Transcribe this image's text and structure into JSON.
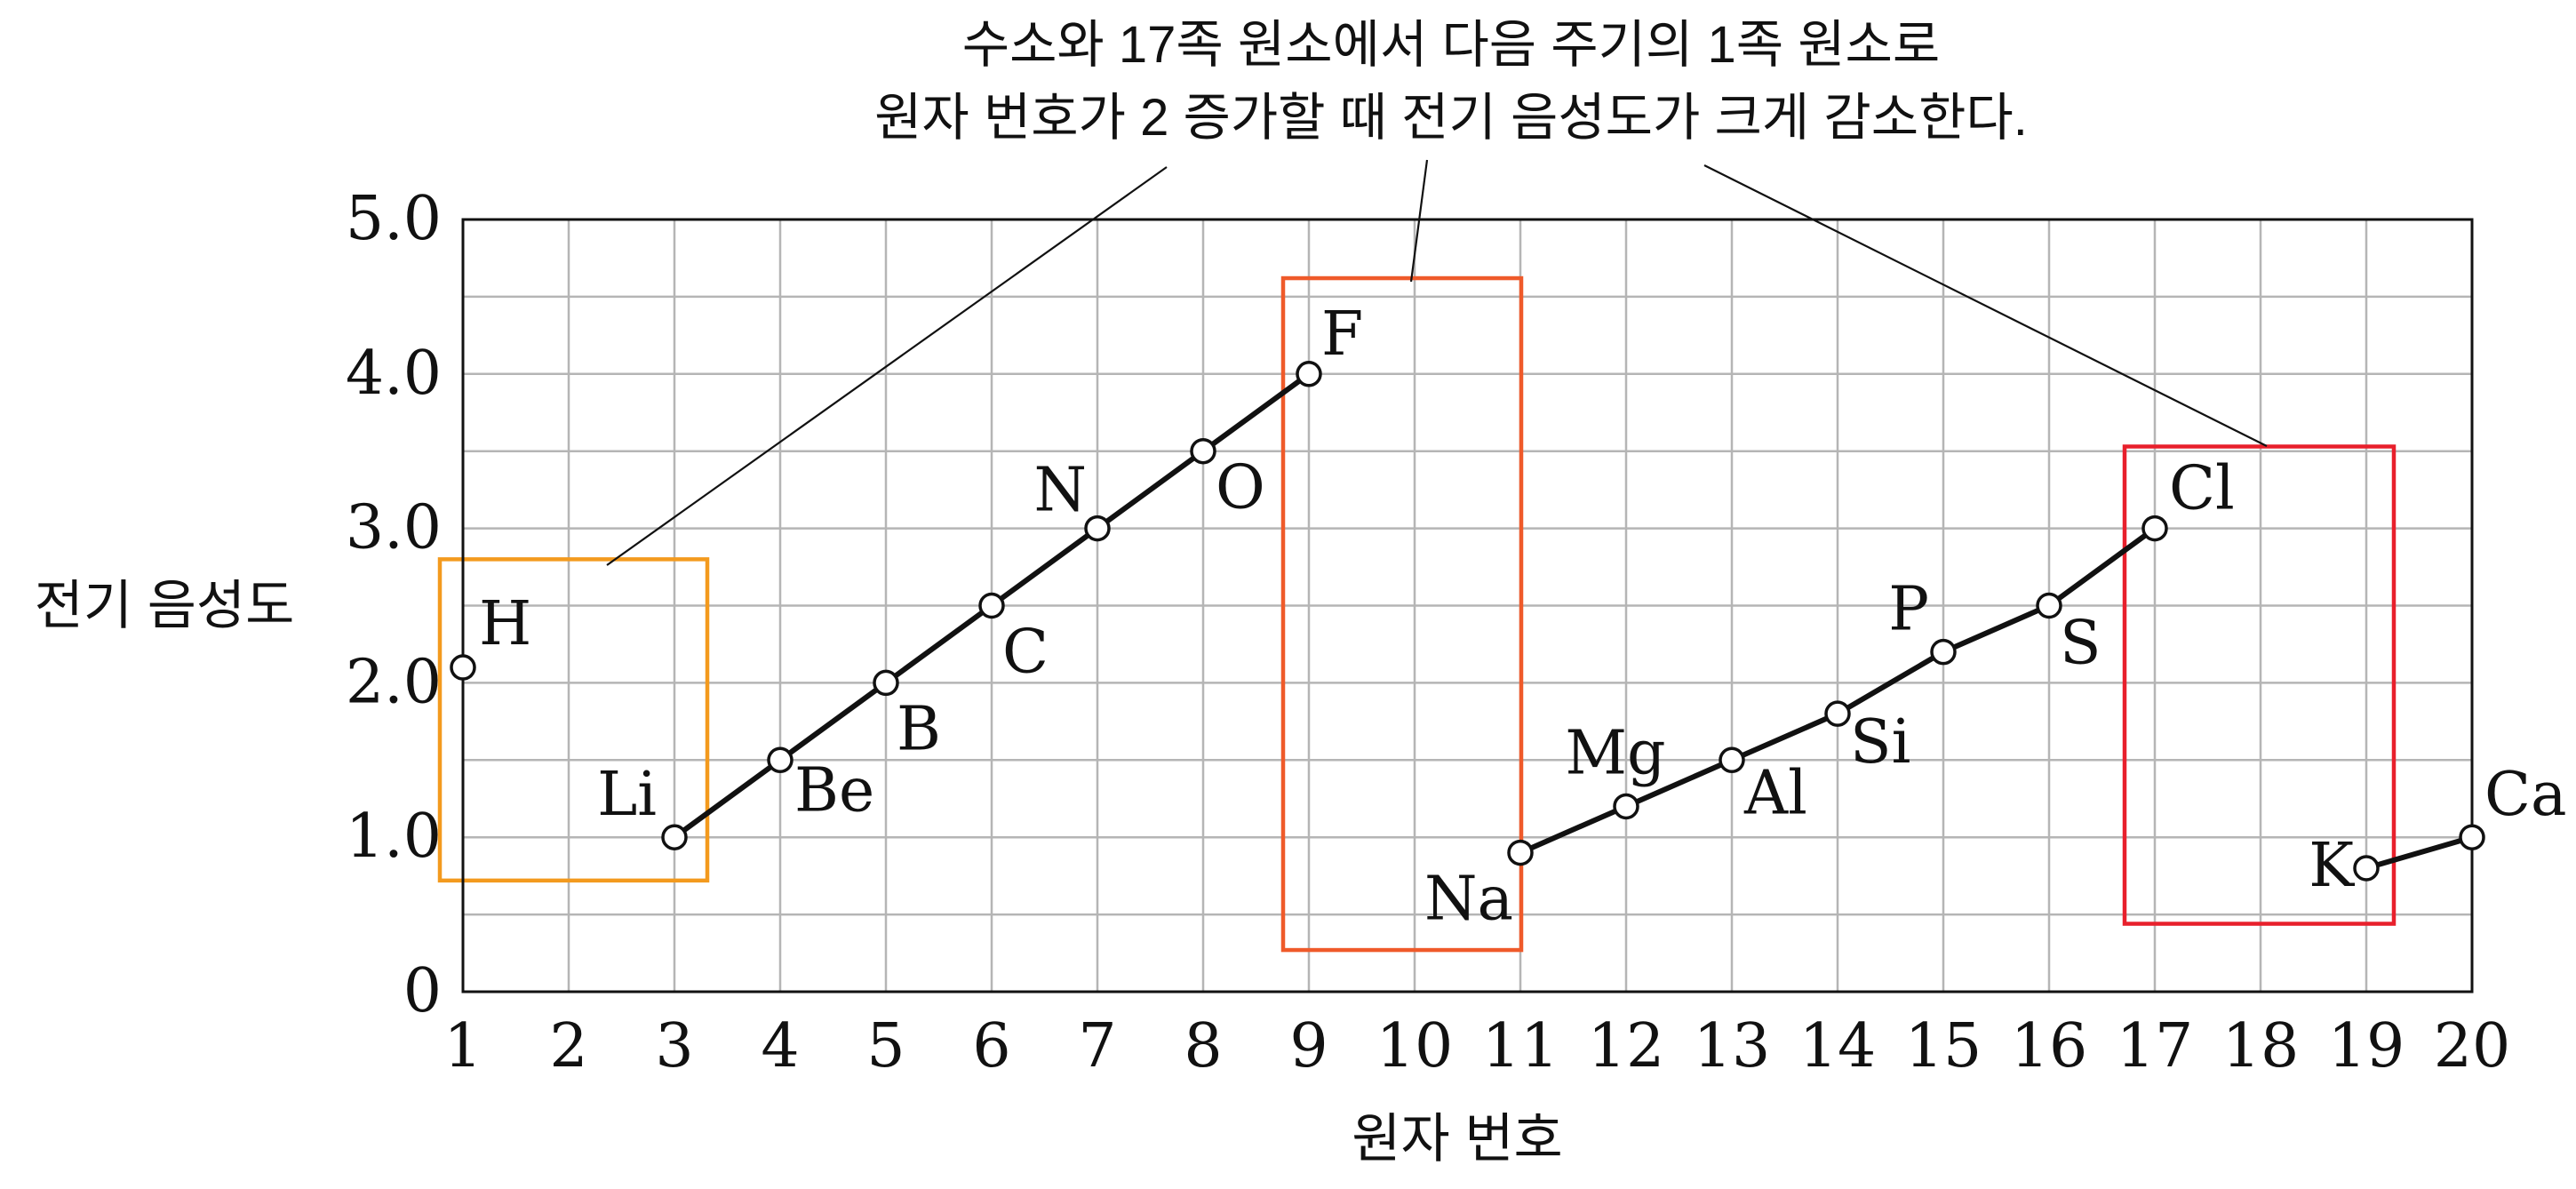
{
  "chart_data": {
    "type": "line",
    "annotation": {
      "line1": "수소와 17족 원소에서 다음 주기의 1족 원소로",
      "line2": "원자 번호가 2 증가할 때 전기 음성도가 크게 감소한다."
    },
    "xlabel": "원자 번호",
    "ylabel": "전기 음성도",
    "xlim": [
      1,
      20
    ],
    "ylim": [
      0,
      5.0
    ],
    "x_ticks": [
      "1",
      "2",
      "3",
      "4",
      "5",
      "6",
      "7",
      "8",
      "9",
      "10",
      "11",
      "12",
      "13",
      "14",
      "15",
      "16",
      "17",
      "18",
      "19",
      "20"
    ],
    "y_ticks": [
      {
        "value": 0,
        "label": "0"
      },
      {
        "value": 1.0,
        "label": "1.0"
      },
      {
        "value": 2.0,
        "label": "2.0"
      },
      {
        "value": 3.0,
        "label": "3.0"
      },
      {
        "value": 4.0,
        "label": "4.0"
      },
      {
        "value": 5.0,
        "label": "5.0"
      }
    ],
    "grid": true,
    "points": [
      {
        "x": 1,
        "y": 2.1,
        "label": "H"
      },
      {
        "x": 3,
        "y": 1.0,
        "label": "Li"
      },
      {
        "x": 4,
        "y": 1.5,
        "label": "Be"
      },
      {
        "x": 5,
        "y": 2.0,
        "label": "B"
      },
      {
        "x": 6,
        "y": 2.5,
        "label": "C"
      },
      {
        "x": 7,
        "y": 3.0,
        "label": "N"
      },
      {
        "x": 8,
        "y": 3.5,
        "label": "O"
      },
      {
        "x": 9,
        "y": 4.0,
        "label": "F"
      },
      {
        "x": 11,
        "y": 0.9,
        "label": "Na"
      },
      {
        "x": 12,
        "y": 1.2,
        "label": "Mg"
      },
      {
        "x": 13,
        "y": 1.5,
        "label": "Al"
      },
      {
        "x": 14,
        "y": 1.8,
        "label": "Si"
      },
      {
        "x": 15,
        "y": 2.2,
        "label": "P"
      },
      {
        "x": 16,
        "y": 2.5,
        "label": "S"
      },
      {
        "x": 17,
        "y": 3.0,
        "label": "Cl"
      },
      {
        "x": 19,
        "y": 0.8,
        "label": "K"
      },
      {
        "x": 20,
        "y": 1.0,
        "label": "Ca"
      }
    ],
    "line_segments": [
      [
        3,
        4,
        5,
        6,
        7,
        8,
        9
      ],
      [
        11,
        12,
        13,
        14,
        15,
        16,
        17
      ],
      [
        19,
        20
      ]
    ],
    "highlight_boxes": [
      {
        "from_x": 1,
        "to_x": 3,
        "color": "#f39a1e"
      },
      {
        "from_x": 9,
        "to_x": 11,
        "color": "#ef5a2a"
      },
      {
        "from_x": 17,
        "to_x": 19,
        "color": "#e8202c"
      }
    ]
  }
}
